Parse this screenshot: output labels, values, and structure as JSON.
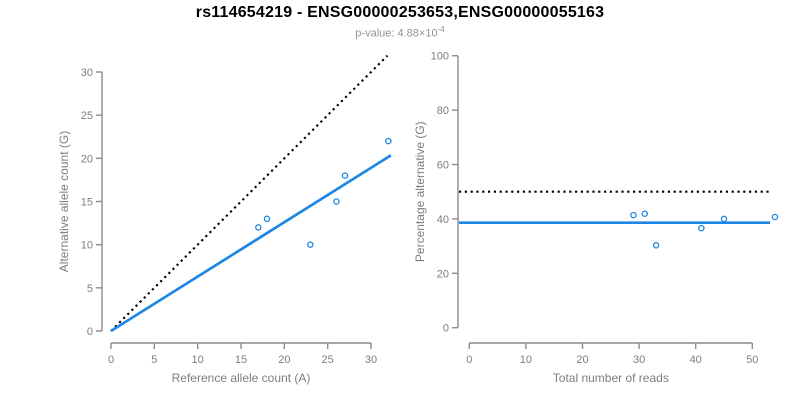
{
  "header": {
    "title": "rs114654219 - ENSG00000253653,ENSG00000055163",
    "p_value_text": "p-value: 4.88×10",
    "p_value_exponent": "-4"
  },
  "colors": {
    "accent_blue": "#1e87e5",
    "line_black": "#000000",
    "axis_gray": "#8c8c8c",
    "text_gray": "#7d7d7d",
    "title_black": "#000000",
    "subtitle_gray": "#939393"
  },
  "chart_data": [
    {
      "type": "scatter",
      "name": "allele-count-scatter",
      "xlabel": "Reference allele count (A)",
      "ylabel": "Alternative allele count (G)",
      "xticks": [
        0,
        5,
        10,
        15,
        20,
        25,
        30
      ],
      "yticks": [
        0,
        5,
        10,
        15,
        20,
        25,
        30
      ],
      "xlim": [
        0,
        32.3
      ],
      "ylim": [
        0,
        31.9
      ],
      "grid": false,
      "legend": "none",
      "points": [
        [
          17,
          12
        ],
        [
          18,
          13
        ],
        [
          23,
          10
        ],
        [
          26,
          15
        ],
        [
          27,
          18
        ],
        [
          32,
          22
        ]
      ],
      "lines": [
        {
          "name": "identity-line",
          "kind": "segment",
          "x1": 0,
          "y1": 0,
          "x2": 31.9,
          "y2": 31.9,
          "style": "dotted",
          "color_key": "line_black",
          "meaning": "y = x (50% reference)"
        },
        {
          "name": "fit-line",
          "kind": "segment",
          "x1": 0,
          "y1": 0,
          "x2": 32.3,
          "y2": 20.35,
          "style": "solid",
          "color_key": "accent_blue",
          "meaning": "fit through origin, slope 0.63"
        }
      ]
    },
    {
      "type": "scatter",
      "name": "percentage-scatter",
      "xlabel": "Total number of reads",
      "ylabel": "Percentage alternative (G)",
      "xticks": [
        0,
        10,
        20,
        30,
        40,
        50
      ],
      "yticks": [
        0,
        20,
        40,
        60,
        80,
        100
      ],
      "xlim": [
        0,
        55
      ],
      "ylim": [
        0,
        100
      ],
      "grid": false,
      "legend": "none",
      "points": [
        [
          29,
          41.4
        ],
        [
          31,
          41.9
        ],
        [
          33,
          30.3
        ],
        [
          41,
          36.6
        ],
        [
          45,
          40.0
        ],
        [
          54,
          40.7
        ]
      ],
      "lines": [
        {
          "name": "fifty-percent-line",
          "kind": "hline",
          "y": 50,
          "style": "dotted",
          "color_key": "line_black",
          "meaning": "50% reference line"
        },
        {
          "name": "mean-percentage-line",
          "kind": "hline",
          "y": 38.6,
          "style": "solid",
          "color_key": "accent_blue",
          "meaning": "mean alternative percentage"
        }
      ]
    }
  ]
}
